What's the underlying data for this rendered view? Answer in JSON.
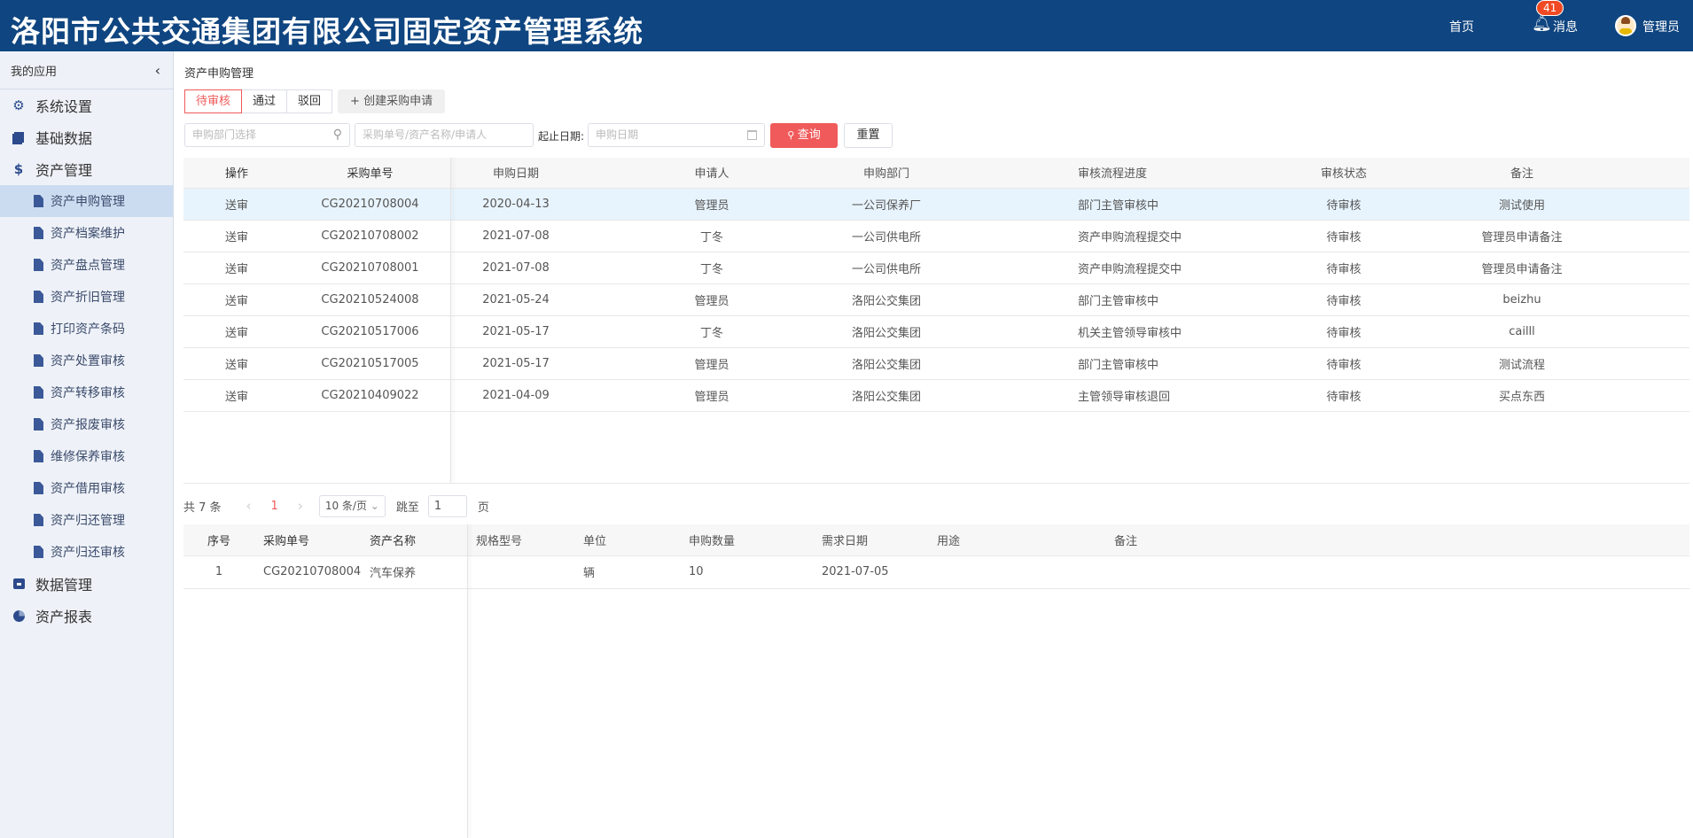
{
  "header": {
    "title": "洛阳市公共交通集团有限公司固定资产管理系统",
    "home": "首页",
    "messages": "消息",
    "message_count": "41",
    "user": "管理员",
    "bg_color": "#0f4580"
  },
  "sidebar": {
    "title": "我的应用",
    "collapse_icon": "‹",
    "top_items": [
      {
        "label": "系统设置",
        "icon": "gear-icon"
      },
      {
        "label": "基础数据",
        "icon": "stack-icon"
      },
      {
        "label": "资产管理",
        "icon": "dollar-icon"
      }
    ],
    "sub_items": [
      {
        "label": "资产申购管理",
        "active": true
      },
      {
        "label": "资产档案维护"
      },
      {
        "label": "资产盘点管理"
      },
      {
        "label": "资产折旧管理"
      },
      {
        "label": "打印资产条码"
      },
      {
        "label": "资产处置审核"
      },
      {
        "label": "资产转移审核"
      },
      {
        "label": "资产报废审核"
      },
      {
        "label": "维修保养审核"
      },
      {
        "label": "资产借用审核"
      },
      {
        "label": "资产归还管理"
      },
      {
        "label": "资产归还审核"
      }
    ],
    "bottom_items": [
      {
        "label": "数据管理",
        "icon": "inbox-icon"
      },
      {
        "label": "资产报表",
        "icon": "pie-chart-icon"
      }
    ]
  },
  "breadcrumb": "资产申购管理",
  "tabs": [
    "待审核",
    "通过",
    "驳回"
  ],
  "create_button": "+  创建采购申请",
  "filters": {
    "dept_placeholder": "申购部门选择",
    "keyword_placeholder": "采购单号/资产名称/申请人",
    "date_label": "起止日期:",
    "date_placeholder": "申购日期",
    "search": "查询",
    "reset": "重置"
  },
  "table": {
    "columns": [
      "操作",
      "采购单号",
      "申购日期",
      "申请人",
      "申购部门",
      "审核流程进度",
      "审核状态",
      "备注"
    ],
    "rows": [
      {
        "action": "送审",
        "action_enabled": false,
        "no": "CG20210708004",
        "date": "2020-04-13",
        "applicant": "管理员",
        "dept": "一公司保养厂",
        "progress": "部门主管审核中",
        "status": "待审核",
        "remark": "测试使用"
      },
      {
        "action": "送审",
        "action_enabled": true,
        "no": "CG20210708002",
        "date": "2021-07-08",
        "applicant": "丁冬",
        "dept": "一公司供电所",
        "progress": "资产申购流程提交中",
        "status": "待审核",
        "remark": "管理员申请备注"
      },
      {
        "action": "送审",
        "action_enabled": true,
        "no": "CG20210708001",
        "date": "2021-07-08",
        "applicant": "丁冬",
        "dept": "一公司供电所",
        "progress": "资产申购流程提交中",
        "status": "待审核",
        "remark": "管理员申请备注"
      },
      {
        "action": "送审",
        "action_enabled": false,
        "no": "CG20210524008",
        "date": "2021-05-24",
        "applicant": "管理员",
        "dept": "洛阳公交集团",
        "progress": "部门主管审核中",
        "status": "待审核",
        "remark": "beizhu"
      },
      {
        "action": "送审",
        "action_enabled": false,
        "no": "CG20210517006",
        "date": "2021-05-17",
        "applicant": "丁冬",
        "dept": "洛阳公交集团",
        "progress": "机关主管领导审核中",
        "status": "待审核",
        "remark": "cailll"
      },
      {
        "action": "送审",
        "action_enabled": false,
        "no": "CG20210517005",
        "date": "2021-05-17",
        "applicant": "管理员",
        "dept": "洛阳公交集团",
        "progress": "部门主管审核中",
        "status": "待审核",
        "remark": "测试流程"
      },
      {
        "action": "送审",
        "action_enabled": false,
        "no": "CG20210409022",
        "date": "2021-04-09",
        "applicant": "管理员",
        "dept": "洛阳公交集团",
        "progress": "主管领导审核退回",
        "status": "待审核",
        "remark": "买点东西"
      }
    ]
  },
  "pagination": {
    "total": "共 7 条",
    "prev": "‹",
    "current": "1",
    "next": "›",
    "page_size": "10 条/页",
    "jump_label": "跳至",
    "jump_value": "1",
    "page_suffix": "页"
  },
  "detail": {
    "columns": [
      "序号",
      "采购单号",
      "资产名称",
      "规格型号",
      "单位",
      "申购数量",
      "需求日期",
      "用途",
      "备注"
    ],
    "rows": [
      {
        "idx": "1",
        "no": "CG20210708004",
        "name": "汽车保养",
        "spec": "",
        "unit": "辆",
        "qty": "10",
        "date": "2021-07-05",
        "use": "",
        "remark": ""
      }
    ]
  }
}
